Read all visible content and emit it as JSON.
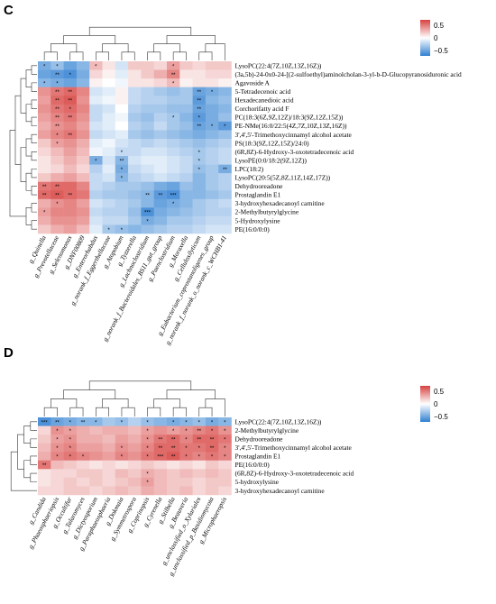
{
  "chart_data": [
    {
      "panel": "C",
      "type": "heatmap",
      "legend_ticks": [
        "0.5",
        "0",
        "−0.5"
      ],
      "scale": {
        "min": -0.7,
        "max": 0.7
      },
      "colors": {
        "high": "#d6413f",
        "mid": "#ffffff",
        "low": "#2f7fd1"
      },
      "rows": [
        "LysoPC(22:4(7Z,10Z,13Z,16Z))",
        "(3a,5b)-24-0x0-24-[(2-sulfoethyl)aminolcholan-3-yl-b-D-Glucopyranosiduronic acid",
        "Agavoside A",
        "5-Tetradecenoic acid",
        "Hexadecanedioic acid",
        "Corchorifatty acid F",
        "PC(18:3(6Z,9Z,12Z)/18:3(9Z,12Z,15Z))",
        "PE-NMe(16:0/22:5(4Z,7Z,10Z,13Z,16Z))",
        "3',4',5'-Trimethoxycinnamyl alcohol acetate",
        "PS(18:3(9Z,12Z,15Z)/24:0)",
        "(6R,8Z)-6-Hydroxy-3-oxotetradecenoic acid",
        "LysoPE(0:0/18:2(9Z,12Z))",
        "LPC(18:2)",
        "LysoPC(20:5(5Z,8Z,11Z,14Z,17Z))",
        "Dehydrooreadone",
        "Prostaglandin E1",
        "3-hydroxyhexadecanoyl carnitine",
        "2-Methylbutyrylglycine",
        "5-Hydroxylysine",
        "PE(16:0/0:0)"
      ],
      "columns": [
        "g_Quinella",
        "g_Prevotellaceae",
        "g_Selenomonas",
        "g_DNF00809",
        "g_Enterorhabdus",
        "g_norank_f_Eggerthellaceae",
        "g_Atopobium",
        "g_Tyzzerella",
        "g_Lachnoclostridium",
        "g_norank_f_Bacteroidales_BS11_gut_group",
        "g_Paenclostridium",
        "g_Moraxella",
        "g_Cellulosilyticum",
        "g_Eubacterium_coprostanoligenes_group",
        "g_norank_f_norank_o_norank_c_WCHB1-41"
      ],
      "values": [
        [
          -0.45,
          -0.35,
          -0.5,
          -0.4,
          0.25,
          0.1,
          -0.15,
          0.2,
          0.2,
          0.15,
          0.35,
          0.2,
          0.15,
          0.2,
          0.2
        ],
        [
          -0.5,
          -0.55,
          -0.6,
          -0.45,
          0.15,
          0.05,
          -0.1,
          0.1,
          0.2,
          0.3,
          0.45,
          0.1,
          0.1,
          0.15,
          0.15
        ],
        [
          -0.4,
          -0.45,
          -0.5,
          -0.4,
          0.05,
          0.0,
          -0.05,
          0.1,
          0.1,
          0.15,
          0.25,
          0.05,
          0.1,
          0.1,
          0.05
        ],
        [
          0.4,
          0.5,
          0.55,
          0.45,
          -0.15,
          -0.1,
          0.05,
          -0.2,
          -0.25,
          -0.3,
          -0.35,
          -0.3,
          -0.5,
          -0.45,
          -0.4
        ],
        [
          0.35,
          0.55,
          0.6,
          0.4,
          -0.1,
          -0.05,
          0.05,
          -0.2,
          -0.25,
          -0.25,
          -0.3,
          -0.3,
          -0.55,
          -0.4,
          -0.35
        ],
        [
          0.4,
          0.5,
          0.55,
          0.45,
          -0.2,
          -0.15,
          0.0,
          -0.25,
          -0.3,
          -0.3,
          -0.35,
          -0.35,
          -0.5,
          -0.45,
          -0.4
        ],
        [
          0.35,
          0.45,
          0.5,
          0.4,
          -0.2,
          -0.1,
          -0.05,
          -0.3,
          -0.35,
          -0.25,
          -0.3,
          -0.4,
          -0.55,
          -0.45,
          -0.35
        ],
        [
          0.3,
          0.4,
          0.45,
          0.35,
          -0.15,
          -0.1,
          0.0,
          -0.25,
          -0.3,
          -0.2,
          -0.3,
          -0.35,
          -0.5,
          -0.45,
          -0.55
        ],
        [
          0.35,
          0.45,
          0.5,
          0.4,
          -0.2,
          -0.15,
          -0.1,
          -0.3,
          -0.35,
          -0.3,
          -0.35,
          -0.4,
          -0.45,
          -0.4,
          -0.35
        ],
        [
          0.2,
          0.35,
          0.4,
          0.3,
          -0.1,
          -0.05,
          -0.15,
          -0.2,
          -0.25,
          -0.2,
          -0.25,
          -0.3,
          -0.35,
          -0.3,
          -0.25
        ],
        [
          0.15,
          0.25,
          0.35,
          0.25,
          -0.05,
          -0.1,
          -0.2,
          -0.2,
          -0.15,
          -0.15,
          -0.2,
          -0.25,
          -0.3,
          -0.25,
          -0.2
        ],
        [
          0.1,
          0.2,
          0.3,
          0.2,
          -0.45,
          -0.15,
          -0.4,
          -0.15,
          -0.1,
          -0.1,
          -0.15,
          -0.2,
          -0.3,
          -0.25,
          -0.2
        ],
        [
          0.1,
          0.15,
          0.25,
          0.15,
          -0.25,
          -0.1,
          -0.45,
          -0.2,
          -0.15,
          -0.1,
          -0.15,
          -0.2,
          -0.35,
          -0.3,
          -0.45
        ],
        [
          0.2,
          0.3,
          0.35,
          0.25,
          -0.2,
          -0.15,
          -0.4,
          -0.25,
          -0.2,
          -0.15,
          -0.2,
          -0.25,
          -0.4,
          -0.3,
          -0.25
        ],
        [
          0.5,
          0.55,
          0.55,
          0.45,
          -0.2,
          -0.25,
          -0.3,
          -0.3,
          -0.35,
          -0.45,
          -0.5,
          -0.35,
          -0.4,
          -0.3,
          -0.25
        ],
        [
          0.55,
          0.6,
          0.55,
          0.5,
          -0.25,
          -0.3,
          -0.3,
          -0.35,
          -0.4,
          -0.55,
          -0.6,
          -0.4,
          -0.4,
          -0.35,
          -0.3
        ],
        [
          0.3,
          0.4,
          0.45,
          0.35,
          -0.15,
          -0.2,
          -0.25,
          -0.3,
          -0.4,
          -0.5,
          -0.45,
          -0.4,
          -0.3,
          -0.25,
          -0.2
        ],
        [
          0.35,
          0.45,
          0.45,
          0.4,
          -0.2,
          -0.25,
          -0.25,
          -0.35,
          -0.6,
          -0.45,
          -0.4,
          -0.35,
          -0.3,
          -0.25,
          -0.25
        ],
        [
          0.3,
          0.4,
          0.4,
          0.35,
          -0.15,
          -0.2,
          -0.2,
          -0.3,
          -0.45,
          -0.4,
          -0.3,
          -0.3,
          -0.25,
          -0.2,
          -0.2
        ],
        [
          0.2,
          0.3,
          0.35,
          0.25,
          -0.1,
          -0.3,
          -0.35,
          -0.4,
          -0.35,
          -0.3,
          -0.25,
          -0.25,
          -0.2,
          -0.15,
          -0.15
        ]
      ],
      "stars": [
        [
          1,
          1,
          0,
          0,
          1,
          0,
          0,
          0,
          0,
          0,
          1,
          0,
          0,
          0,
          0
        ],
        [
          0,
          2,
          1,
          0,
          0,
          0,
          0,
          0,
          0,
          0,
          2,
          0,
          0,
          0,
          0
        ],
        [
          1,
          1,
          0,
          0,
          0,
          0,
          0,
          0,
          0,
          0,
          1,
          0,
          0,
          0,
          0
        ],
        [
          0,
          2,
          2,
          0,
          0,
          0,
          0,
          0,
          0,
          0,
          0,
          0,
          2,
          1,
          0
        ],
        [
          0,
          2,
          2,
          0,
          0,
          0,
          0,
          0,
          0,
          0,
          0,
          0,
          2,
          0,
          0
        ],
        [
          0,
          2,
          1,
          0,
          0,
          0,
          0,
          0,
          0,
          0,
          0,
          0,
          2,
          0,
          0
        ],
        [
          0,
          2,
          2,
          0,
          0,
          0,
          0,
          0,
          0,
          0,
          1,
          0,
          1,
          0,
          0
        ],
        [
          0,
          2,
          0,
          0,
          0,
          0,
          0,
          0,
          0,
          0,
          0,
          0,
          2,
          1,
          1
        ],
        [
          0,
          1,
          2,
          0,
          0,
          0,
          0,
          0,
          0,
          0,
          0,
          0,
          0,
          0,
          0
        ],
        [
          0,
          1,
          0,
          0,
          0,
          0,
          0,
          0,
          0,
          0,
          0,
          0,
          0,
          0,
          0
        ],
        [
          0,
          0,
          0,
          0,
          0,
          0,
          1,
          0,
          0,
          0,
          0,
          0,
          1,
          0,
          0
        ],
        [
          0,
          0,
          0,
          0,
          1,
          0,
          2,
          0,
          0,
          0,
          0,
          0,
          1,
          0,
          0
        ],
        [
          0,
          0,
          0,
          0,
          0,
          0,
          1,
          0,
          0,
          0,
          0,
          0,
          1,
          0,
          2
        ],
        [
          0,
          0,
          0,
          0,
          0,
          0,
          1,
          0,
          0,
          0,
          0,
          0,
          0,
          0,
          0
        ],
        [
          2,
          2,
          0,
          0,
          0,
          0,
          0,
          0,
          0,
          0,
          0,
          0,
          0,
          0,
          0
        ],
        [
          2,
          2,
          2,
          0,
          0,
          0,
          0,
          0,
          2,
          2,
          3,
          0,
          0,
          0,
          0
        ],
        [
          0,
          1,
          0,
          0,
          0,
          0,
          0,
          0,
          0,
          0,
          1,
          0,
          0,
          0,
          0
        ],
        [
          1,
          0,
          0,
          0,
          0,
          0,
          0,
          0,
          3,
          0,
          0,
          0,
          0,
          0,
          0
        ],
        [
          0,
          0,
          0,
          0,
          0,
          0,
          0,
          0,
          1,
          0,
          0,
          0,
          0,
          0,
          0
        ],
        [
          0,
          0,
          0,
          0,
          0,
          1,
          1,
          0,
          0,
          0,
          0,
          0,
          0,
          0,
          0
        ]
      ]
    },
    {
      "panel": "D",
      "type": "heatmap",
      "legend_ticks": [
        "0.5",
        "0",
        "−0.5"
      ],
      "scale": {
        "min": -0.7,
        "max": 0.7
      },
      "colors": {
        "high": "#d6413f",
        "mid": "#ffffff",
        "low": "#2f7fd1"
      },
      "rows": [
        "LysoPC(22:4(7Z,10Z,13Z,16Z))",
        "2-Methylbutyrylglycine",
        "Dehydrooreadone",
        "3',4',5'-Trimethoxycinnamyl alcohol acetate",
        "Prostaglandin E1",
        "PE(16:0/0:0)",
        "(6R,8Z)-6-Hydroxy-3-oxotetradecenoic acid",
        "5-hydroxylysine",
        "3-hydroxyhexadecanoyl carnitine"
      ],
      "columns": [
        "g_Candida",
        "g_Phaeosphaeriopsis",
        "g_Occultifur",
        "g_Talaromyces",
        "g_Dictyosporium",
        "g_Paraphaeosphaeria",
        "g_Dokmaia",
        "g_Symmetrospora",
        "g_Coprinopsis",
        "g_Cyrenella",
        "g_Stilbella",
        "g_Beauveria",
        "g_unclassified_o_Xylariales",
        "g_unclassified_p_Basidiomycota",
        "g_Microphaeropsis"
      ],
      "values": [
        [
          -0.6,
          -0.5,
          -0.45,
          -0.4,
          -0.4,
          -0.3,
          -0.35,
          -0.25,
          -0.35,
          -0.4,
          -0.45,
          -0.4,
          -0.35,
          -0.45,
          -0.4
        ],
        [
          0.15,
          0.4,
          0.35,
          0.3,
          0.25,
          0.3,
          0.3,
          0.25,
          0.35,
          0.4,
          0.35,
          0.4,
          0.45,
          0.5,
          0.4
        ],
        [
          0.2,
          0.35,
          0.4,
          0.3,
          0.3,
          0.25,
          0.35,
          0.3,
          0.4,
          0.5,
          0.55,
          0.45,
          0.55,
          0.55,
          0.5
        ],
        [
          0.25,
          0.4,
          0.45,
          0.35,
          0.35,
          0.3,
          0.4,
          0.35,
          0.45,
          0.55,
          0.55,
          0.5,
          0.5,
          0.55,
          0.45
        ],
        [
          0.3,
          0.45,
          0.5,
          0.45,
          0.4,
          0.35,
          0.45,
          0.4,
          0.5,
          0.55,
          0.6,
          0.5,
          0.45,
          0.5,
          0.45
        ],
        [
          0.5,
          0.25,
          0.2,
          0.15,
          0.1,
          0.15,
          0.1,
          0.15,
          0.2,
          0.15,
          0.1,
          0.15,
          0.1,
          0.2,
          0.15
        ],
        [
          0.1,
          0.15,
          0.15,
          0.2,
          0.2,
          0.15,
          0.25,
          0.2,
          0.3,
          0.25,
          0.2,
          0.25,
          0.2,
          0.25,
          0.2
        ],
        [
          0.1,
          0.15,
          0.2,
          0.15,
          0.2,
          0.15,
          0.2,
          0.25,
          0.35,
          0.25,
          0.2,
          0.2,
          0.15,
          0.2,
          0.2
        ],
        [
          0.15,
          0.15,
          0.2,
          0.2,
          0.15,
          0.2,
          0.25,
          0.2,
          0.3,
          0.25,
          0.2,
          0.25,
          0.15,
          0.2,
          0.15
        ]
      ],
      "stars": [
        [
          3,
          2,
          1,
          2,
          1,
          0,
          1,
          0,
          1,
          0,
          1,
          1,
          1,
          1,
          1
        ],
        [
          0,
          1,
          1,
          0,
          0,
          0,
          0,
          0,
          1,
          0,
          1,
          1,
          2,
          1,
          1
        ],
        [
          0,
          1,
          1,
          0,
          0,
          0,
          0,
          0,
          1,
          2,
          2,
          1,
          2,
          2,
          1
        ],
        [
          0,
          1,
          1,
          0,
          0,
          0,
          1,
          0,
          1,
          2,
          2,
          1,
          1,
          2,
          1
        ],
        [
          0,
          1,
          1,
          1,
          0,
          0,
          1,
          0,
          1,
          3,
          2,
          1,
          1,
          1,
          1
        ],
        [
          2,
          0,
          0,
          0,
          0,
          0,
          0,
          0,
          0,
          0,
          0,
          0,
          0,
          0,
          0
        ],
        [
          0,
          0,
          0,
          0,
          0,
          0,
          0,
          0,
          1,
          0,
          0,
          0,
          0,
          0,
          0
        ],
        [
          0,
          0,
          0,
          0,
          0,
          0,
          0,
          0,
          1,
          0,
          0,
          0,
          0,
          0,
          0
        ],
        [
          0,
          0,
          0,
          0,
          0,
          0,
          0,
          0,
          0,
          0,
          0,
          0,
          0,
          0,
          0
        ]
      ]
    }
  ]
}
